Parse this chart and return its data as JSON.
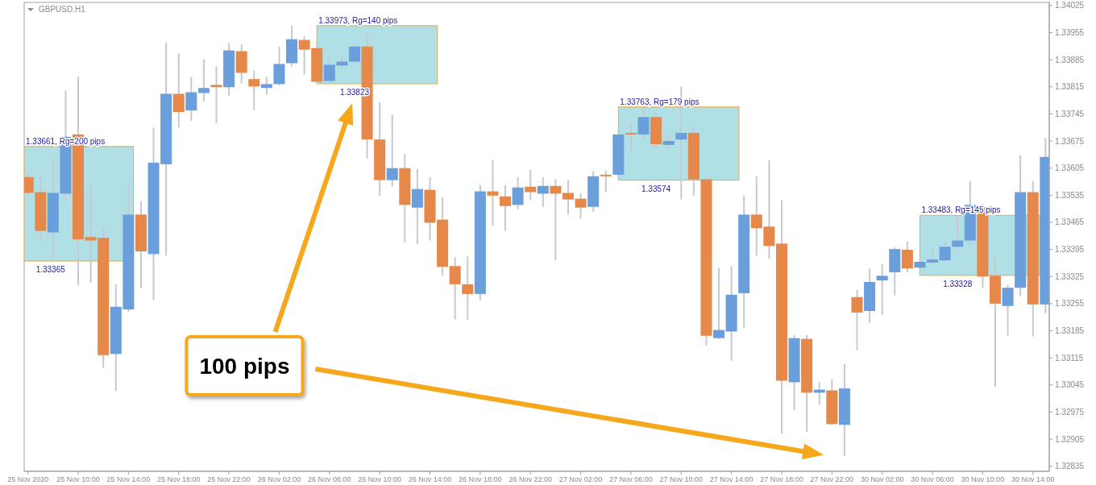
{
  "chart_data": {
    "type": "candlestick",
    "title": "GBPUSD.H1",
    "categories": [
      "25 Nov 2020",
      null,
      null,
      null,
      "25 Nov 10:00",
      null,
      null,
      null,
      "25 Nov 14:00",
      null,
      null,
      null,
      "25 Nov 18:00",
      null,
      null,
      null,
      "25 Nov 22:00",
      null,
      null,
      null,
      "26 Nov 02:00",
      null,
      null,
      null,
      "26 Nov 06:00",
      null,
      null,
      null,
      "26 Nov 10:00",
      null,
      null,
      null,
      "26 Nov 14:00",
      null,
      null,
      null,
      "26 Nov 18:00",
      null,
      null,
      null,
      "26 Nov 22:00",
      null,
      null,
      null,
      "27 Nov 02:00",
      null,
      null,
      null,
      "27 Nov 06:00",
      null,
      null,
      null,
      "27 Nov 10:00",
      null,
      null,
      null,
      "27 Nov 14:00",
      null,
      null,
      null,
      "27 Nov 18:00",
      null,
      null,
      null,
      "27 Nov 22:00",
      null,
      null,
      null,
      "30 Nov 02:00",
      null,
      null,
      null,
      "30 Nov 06:00",
      null,
      null,
      null,
      "30 Nov 10:00",
      null,
      null,
      null,
      "30 Nov 14:00",
      null
    ],
    "bands": [
      {
        "axis": "y",
        "from": 1.33365,
        "to": 1.33661,
        "label": "1.33661, Rg=200 pips",
        "color": "#b0e0e6"
      },
      {
        "axis": "y",
        "from": 1.33823,
        "to": 1.33973,
        "label": "1.33973, Rg=140 pips",
        "color": "#b0e0e6"
      },
      {
        "axis": "y",
        "from": 1.33574,
        "to": 1.33763,
        "label": "1.33763, Rg=179 pips",
        "color": "#b0e0e6"
      },
      {
        "axis": "y",
        "from": 1.33328,
        "to": 1.33483,
        "label": "1.33483, Rg=145 pips",
        "color": "#b0e0e6"
      }
    ],
    "ylim": [
      1.32822,
      1.34033
    ],
    "yticks": [
      1.34025,
      1.33955,
      1.33885,
      1.33815,
      1.33745,
      1.33675,
      1.33605,
      1.33535,
      1.33465,
      1.33395,
      1.33325,
      1.33255,
      1.33185,
      1.33115,
      1.33045,
      1.32975,
      1.32905,
      1.32835
    ],
    "ohlc": [
      [
        1.33582,
        1.33592,
        1.3353,
        1.33541
      ],
      [
        1.33543,
        1.33586,
        1.33416,
        1.33443
      ],
      [
        1.33439,
        1.33632,
        1.33365,
        1.33541
      ],
      [
        1.33539,
        1.33806,
        1.3352,
        1.33686
      ],
      [
        1.33692,
        1.33841,
        1.33303,
        1.33421
      ],
      [
        1.33427,
        1.33561,
        1.33309,
        1.33418
      ],
      [
        1.33425,
        1.33447,
        1.33089,
        1.33122
      ],
      [
        1.33125,
        1.33305,
        1.33029,
        1.33247
      ],
      [
        1.3324,
        1.33568,
        1.33234,
        1.33485
      ],
      [
        1.33485,
        1.3352,
        1.33296,
        1.3339
      ],
      [
        1.33383,
        1.3371,
        1.33265,
        1.33619
      ],
      [
        1.33615,
        1.3393,
        1.33379,
        1.33797
      ],
      [
        1.33797,
        1.33901,
        1.3371,
        1.3375
      ],
      [
        1.33754,
        1.33841,
        1.33727,
        1.33801
      ],
      [
        1.33799,
        1.33886,
        1.33777,
        1.33812
      ],
      [
        1.3382,
        1.33868,
        1.33721,
        1.33814
      ],
      [
        1.33814,
        1.33928,
        1.33793,
        1.33909
      ],
      [
        1.33907,
        1.33924,
        1.33824,
        1.33851
      ],
      [
        1.33835,
        1.33857,
        1.33754,
        1.33816
      ],
      [
        1.33812,
        1.33841,
        1.33795,
        1.33822
      ],
      [
        1.33822,
        1.33919,
        1.33818,
        1.33874
      ],
      [
        1.33876,
        1.33973,
        1.33868,
        1.33938
      ],
      [
        1.33936,
        1.33946,
        1.33847,
        1.33911
      ],
      [
        1.33915,
        1.33924,
        1.33823,
        1.33828
      ],
      [
        1.3383,
        1.33888,
        1.33826,
        1.33872
      ],
      [
        1.3387,
        1.33893,
        1.33861,
        1.3388
      ],
      [
        1.3388,
        1.33924,
        1.33878,
        1.33919
      ],
      [
        1.33919,
        1.33955,
        1.3363,
        1.33679
      ],
      [
        1.33679,
        1.33775,
        1.33534,
        1.33574
      ],
      [
        1.33574,
        1.33743,
        1.33557,
        1.33605
      ],
      [
        1.33605,
        1.33642,
        1.33412,
        1.3351
      ],
      [
        1.33503,
        1.33603,
        1.33408,
        1.33551
      ],
      [
        1.33549,
        1.33582,
        1.33418,
        1.33464
      ],
      [
        1.33472,
        1.3353,
        1.33327,
        1.3335
      ],
      [
        1.33352,
        1.33375,
        1.33214,
        1.33305
      ],
      [
        1.33305,
        1.33377,
        1.33214,
        1.3328
      ],
      [
        1.3328,
        1.33561,
        1.33263,
        1.33545
      ],
      [
        1.33545,
        1.33625,
        1.33456,
        1.33534
      ],
      [
        1.33532,
        1.33561,
        1.33443,
        1.33507
      ],
      [
        1.3351,
        1.33582,
        1.33499,
        1.33555
      ],
      [
        1.33557,
        1.33601,
        1.33522,
        1.33543
      ],
      [
        1.33539,
        1.33582,
        1.33505,
        1.33559
      ],
      [
        1.33559,
        1.33576,
        1.33367,
        1.33539
      ],
      [
        1.33541,
        1.33574,
        1.33485,
        1.33524
      ],
      [
        1.33526,
        1.33541,
        1.33474,
        1.33503
      ],
      [
        1.33505,
        1.33597,
        1.33493,
        1.33584
      ],
      [
        1.33588,
        1.33599,
        1.33543,
        1.33584
      ],
      [
        1.33588,
        1.33696,
        1.33582,
        1.33692
      ],
      [
        1.33696,
        1.33721,
        1.3365,
        1.33692
      ],
      [
        1.33692,
        1.33763,
        1.3368,
        1.33737
      ],
      [
        1.33737,
        1.33748,
        1.33654,
        1.33667
      ],
      [
        1.33665,
        1.33696,
        1.33654,
        1.33675
      ],
      [
        1.33679,
        1.33816,
        1.33524,
        1.33696
      ],
      [
        1.33696,
        1.33712,
        1.33534,
        1.33576
      ],
      [
        1.33576,
        1.3358,
        1.33147,
        1.33172
      ],
      [
        1.33166,
        1.33348,
        1.33164,
        1.33187
      ],
      [
        1.33183,
        1.33352,
        1.33108,
        1.33278
      ],
      [
        1.33282,
        1.33534,
        1.33193,
        1.33485
      ],
      [
        1.33485,
        1.33584,
        1.33379,
        1.3345
      ],
      [
        1.33454,
        1.33625,
        1.33371,
        1.33404
      ],
      [
        1.3341,
        1.33522,
        1.3292,
        1.33056
      ],
      [
        1.33052,
        1.33174,
        1.3298,
        1.33166
      ],
      [
        1.33164,
        1.33174,
        1.32924,
        1.33025
      ],
      [
        1.33025,
        1.33052,
        1.32994,
        1.33033
      ],
      [
        1.33031,
        1.3306,
        1.32942,
        1.32944
      ],
      [
        1.32942,
        1.331,
        1.32862,
        1.33036
      ],
      [
        1.33272,
        1.3329,
        1.33135,
        1.33232
      ],
      [
        1.33236,
        1.33346,
        1.33205,
        1.33311
      ],
      [
        1.33315,
        1.33358,
        1.33226,
        1.33327
      ],
      [
        1.33336,
        1.334,
        1.33276,
        1.33396
      ],
      [
        1.33394,
        1.33416,
        1.33336,
        1.33346
      ],
      [
        1.33348,
        1.33375,
        1.33328,
        1.33363
      ],
      [
        1.33361,
        1.33396,
        1.33354,
        1.33369
      ],
      [
        1.33367,
        1.33416,
        1.33363,
        1.33402
      ],
      [
        1.33402,
        1.33483,
        1.33396,
        1.33418
      ],
      [
        1.33418,
        1.33572,
        1.33406,
        1.3351
      ],
      [
        1.33505,
        1.33512,
        1.33296,
        1.33325
      ],
      [
        1.33327,
        1.33375,
        1.3304,
        1.33255
      ],
      [
        1.33249,
        1.33303,
        1.33172,
        1.33296
      ],
      [
        1.33296,
        1.33638,
        1.33274,
        1.33543
      ],
      [
        1.33543,
        1.33572,
        1.3317,
        1.33253
      ],
      [
        1.33253,
        1.33683,
        1.3323,
        1.33634
      ]
    ],
    "colors": [
      "#e5884a",
      "#e5884a",
      "#6a9fdc",
      "#6a9fdc",
      "#e5884a",
      "#e5884a",
      "#e5884a",
      "#6a9fdc",
      "#6a9fdc",
      "#e5884a",
      "#6a9fdc",
      "#6a9fdc",
      "#e5884a",
      "#6a9fdc",
      "#6a9fdc",
      "#e5884a",
      "#6a9fdc",
      "#e5884a",
      "#e5884a",
      "#6a9fdc",
      "#6a9fdc",
      "#6a9fdc",
      "#e5884a",
      "#e5884a",
      "#6a9fdc",
      "#6a9fdc",
      "#6a9fdc",
      "#e5884a",
      "#e5884a",
      "#6a9fdc",
      "#e5884a",
      "#6a9fdc",
      "#e5884a",
      "#e5884a",
      "#e5884a",
      "#e5884a",
      "#6a9fdc",
      "#e5884a",
      "#e5884a",
      "#6a9fdc",
      "#e5884a",
      "#6a9fdc",
      "#e5884a",
      "#e5884a",
      "#e5884a",
      "#6a9fdc",
      "#e5884a",
      "#6a9fdc",
      "#e5884a",
      "#6a9fdc",
      "#e5884a",
      "#6a9fdc",
      "#6a9fdc",
      "#e5884a",
      "#e5884a",
      "#6a9fdc",
      "#6a9fdc",
      "#6a9fdc",
      "#e5884a",
      "#e5884a",
      "#e5884a",
      "#6a9fdc",
      "#e5884a",
      "#6a9fdc",
      "#e5884a",
      "#6a9fdc",
      "#e5884a",
      "#6a9fdc",
      "#6a9fdc",
      "#6a9fdc",
      "#e5884a",
      "#6a9fdc",
      "#6a9fdc",
      "#6a9fdc",
      "#6a9fdc",
      "#6a9fdc",
      "#e5884a",
      "#e5884a",
      "#6a9fdc",
      "#6a9fdc",
      "#e5884a",
      "#6a9fdc"
    ],
    "annotations": [
      "1.33365",
      "1.33823",
      "1.33574",
      "1.33328",
      "100 pips"
    ]
  }
}
